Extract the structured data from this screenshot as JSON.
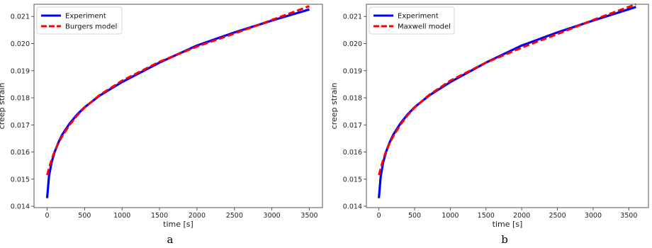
{
  "chart_data": [
    {
      "type": "line",
      "panel_label": "a",
      "xlabel": "time [s]",
      "ylabel": "creep strain",
      "xlim": [
        -175,
        3675
      ],
      "ylim": [
        0.01395,
        0.02145
      ],
      "xticks": [
        0,
        500,
        1000,
        1500,
        2000,
        2500,
        3000,
        3500
      ],
      "yticks": [
        0.014,
        0.015,
        0.016,
        0.017,
        0.018,
        0.019,
        0.02,
        0.021
      ],
      "grid": false,
      "legend": "top-left",
      "x": [
        0,
        25,
        60,
        100,
        150,
        200,
        300,
        400,
        500,
        700,
        1000,
        1500,
        2000,
        2500,
        3000,
        3500
      ],
      "series": [
        {
          "name": "Experiment",
          "style": "solid",
          "color": "#0000ff",
          "values": [
            0.0143,
            0.0151,
            0.01562,
            0.016,
            0.01635,
            0.01663,
            0.01705,
            0.01738,
            0.01765,
            0.01808,
            0.01858,
            0.0193,
            0.01993,
            0.02041,
            0.02085,
            0.02126
          ]
        },
        {
          "name": "Burgers model",
          "style": "dashed",
          "color": "#ff0000",
          "values": [
            0.01515,
            0.0154,
            0.01572,
            0.01603,
            0.01632,
            0.01658,
            0.017,
            0.01735,
            0.01764,
            0.0181,
            0.01863,
            0.01933,
            0.01989,
            0.02037,
            0.02087,
            0.02138
          ]
        }
      ]
    },
    {
      "type": "line",
      "panel_label": "b",
      "xlabel": "time [s]",
      "ylabel": "creep strain",
      "xlim": [
        -175,
        3775
      ],
      "ylim": [
        0.01395,
        0.02145
      ],
      "xticks": [
        0,
        500,
        1000,
        1500,
        2000,
        2500,
        3000,
        3500
      ],
      "yticks": [
        0.014,
        0.015,
        0.016,
        0.017,
        0.018,
        0.019,
        0.02,
        0.021
      ],
      "grid": false,
      "legend": "top-left",
      "x": [
        0,
        25,
        60,
        100,
        150,
        200,
        300,
        400,
        500,
        700,
        1000,
        1500,
        2000,
        2500,
        3000,
        3600
      ],
      "series": [
        {
          "name": "Experiment",
          "style": "solid",
          "color": "#0000ff",
          "values": [
            0.0143,
            0.0151,
            0.01562,
            0.016,
            0.01635,
            0.01663,
            0.01705,
            0.01738,
            0.01765,
            0.01808,
            0.01858,
            0.0193,
            0.01993,
            0.02041,
            0.02085,
            0.02135
          ]
        },
        {
          "name": "Maxwell model",
          "style": "dashed",
          "color": "#ff0000",
          "values": [
            0.01515,
            0.0154,
            0.01572,
            0.01603,
            0.01632,
            0.01658,
            0.017,
            0.01735,
            0.01764,
            0.0181,
            0.01863,
            0.0193,
            0.01985,
            0.02035,
            0.02087,
            0.02145
          ]
        }
      ]
    }
  ]
}
